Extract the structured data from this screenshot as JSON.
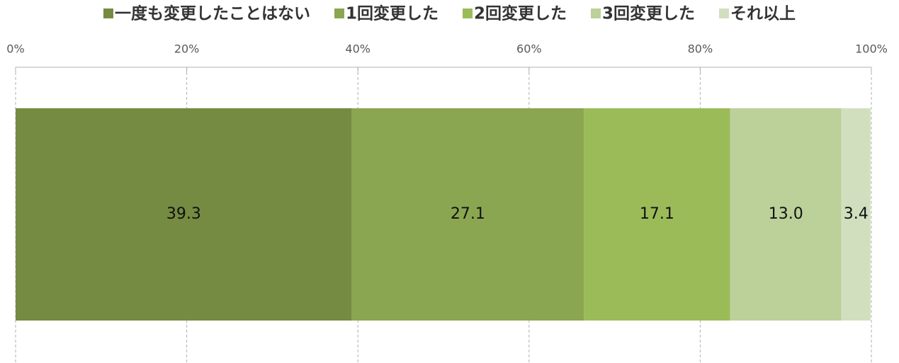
{
  "chart_data": {
    "type": "bar",
    "orientation": "horizontal",
    "stacked": true,
    "series": [
      {
        "name": "一度も変更したことはない",
        "color": "#758b41",
        "values": [
          39.3
        ]
      },
      {
        "name": "1回変更した",
        "color": "#8ba650",
        "values": [
          27.1
        ]
      },
      {
        "name": "2回変更した",
        "color": "#9bbb59",
        "values": [
          17.1
        ]
      },
      {
        "name": "3回変更した",
        "color": "#bcd09a",
        "values": [
          13.0
        ],
        "value_labels": [
          "13.0"
        ]
      },
      {
        "name": "それ以上",
        "color": "#d2dfbf",
        "values": [
          3.4
        ]
      }
    ],
    "xlim": [
      0,
      100
    ],
    "xticks": [
      {
        "value": 0,
        "label": "0%"
      },
      {
        "value": 20,
        "label": "20%"
      },
      {
        "value": 40,
        "label": "40%"
      },
      {
        "value": 60,
        "label": "60%"
      },
      {
        "value": 80,
        "label": "80%"
      },
      {
        "value": 100,
        "label": "100%"
      }
    ],
    "grid": true,
    "legend": "top"
  }
}
